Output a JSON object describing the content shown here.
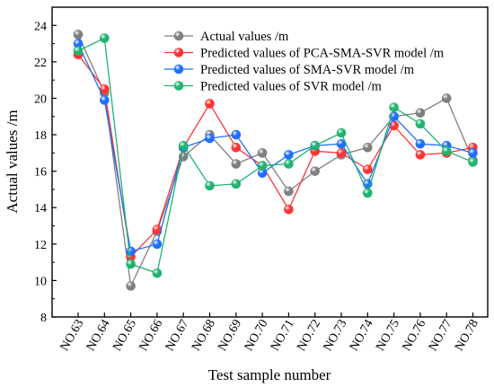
{
  "chart_data": {
    "type": "line",
    "title": "",
    "xlabel": "Test sample number",
    "ylabel": "Actual values /m",
    "categories": [
      "NO.63",
      "NO.64",
      "NO.65",
      "NO.66",
      "NO.67",
      "NO.68",
      "NO.69",
      "NO.70",
      "NO.71",
      "NO.72",
      "NO.73",
      "NO.74",
      "NO.75",
      "NO.76",
      "NO.77",
      "NO.78"
    ],
    "ylim": [
      8,
      25
    ],
    "yticks": [
      8,
      10,
      12,
      14,
      16,
      18,
      20,
      22,
      24
    ],
    "legend_position": "top-right",
    "grid": false,
    "series": [
      {
        "name": "Actual values /m",
        "color": "#7f7f7f",
        "values": [
          23.5,
          20.3,
          9.7,
          12.7,
          16.8,
          18.0,
          16.4,
          17.0,
          14.9,
          16.0,
          16.9,
          17.3,
          19.0,
          19.2,
          20.0,
          16.6
        ]
      },
      {
        "name": "Predicted values of PCA-SMA-SVR model /m",
        "color": "#ff3333",
        "values": [
          22.4,
          20.5,
          11.3,
          12.8,
          17.3,
          19.7,
          17.3,
          16.3,
          13.9,
          17.1,
          17.0,
          16.1,
          18.5,
          16.9,
          17.0,
          17.3
        ]
      },
      {
        "name": "Predicted values of SMA-SVR model /m",
        "color": "#1f6fff",
        "values": [
          23.0,
          19.9,
          11.6,
          12.0,
          17.3,
          17.8,
          18.0,
          15.9,
          16.9,
          17.4,
          17.5,
          15.3,
          19.0,
          17.5,
          17.4,
          17.0
        ]
      },
      {
        "name": "Predicted values of SVR model /m",
        "color": "#1fb46e",
        "values": [
          22.6,
          23.3,
          10.9,
          10.4,
          17.4,
          15.2,
          15.3,
          16.3,
          16.4,
          17.4,
          18.1,
          14.8,
          19.5,
          18.6,
          17.1,
          16.5
        ]
      }
    ]
  }
}
